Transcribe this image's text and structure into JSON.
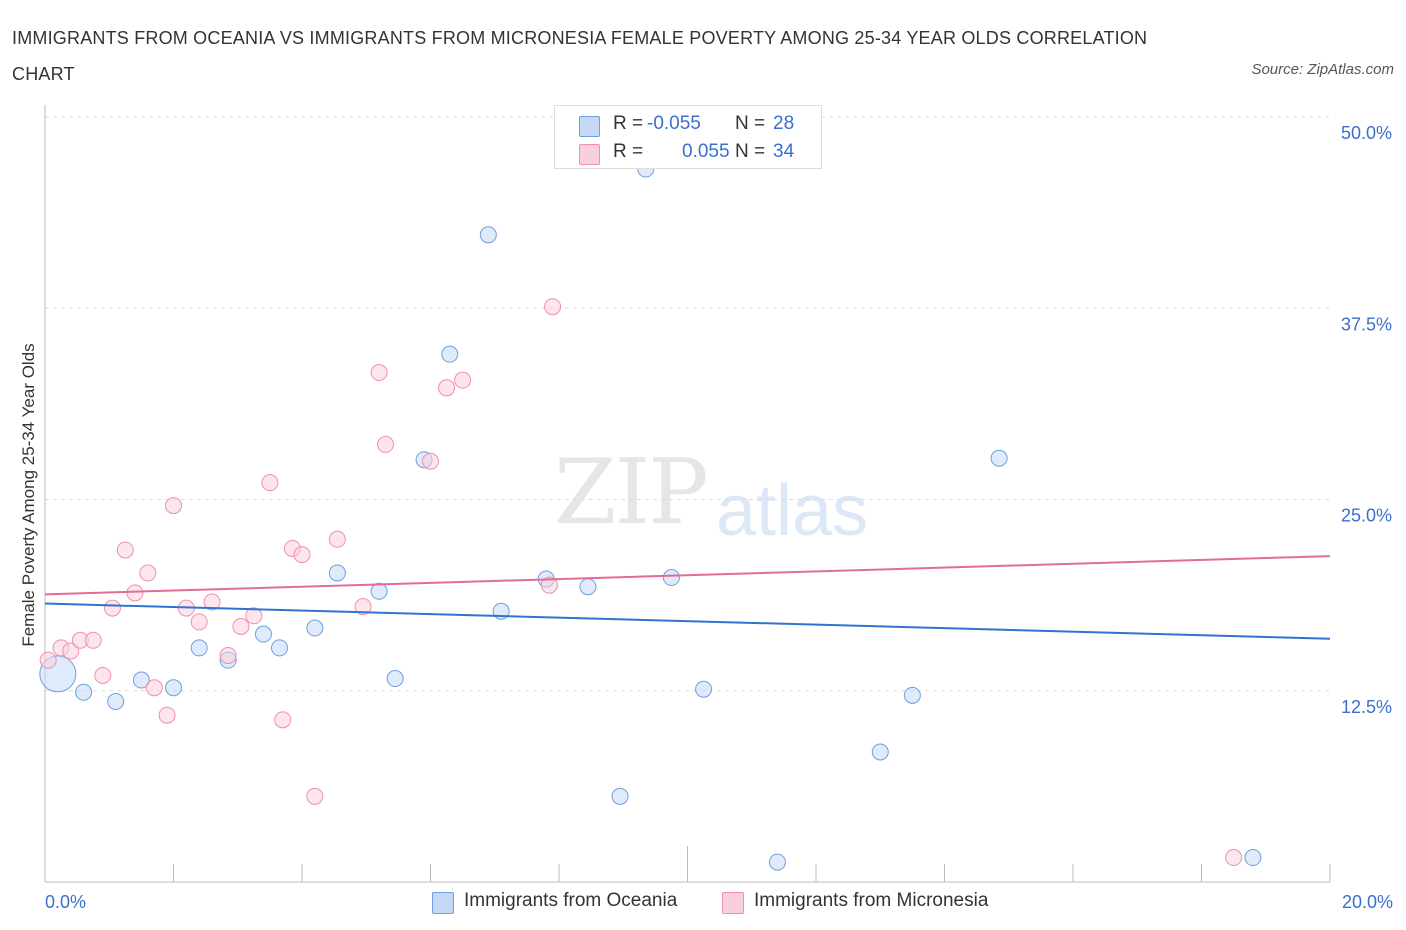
{
  "title": "IMMIGRANTS FROM OCEANIA VS IMMIGRANTS FROM MICRONESIA FEMALE POVERTY AMONG 25-34 YEAR OLDS CORRELATION CHART",
  "source": "Source: ZipAtlas.com",
  "watermark": {
    "zip": "ZIP",
    "atlas": "atlas"
  },
  "legend": {
    "series1": {
      "r_label": "R =",
      "r_value": "-0.055",
      "n_label": "N =",
      "n_value": "28"
    },
    "series2": {
      "r_label": "R =",
      "r_value": "0.055",
      "n_label": "N =",
      "n_value": "34"
    }
  },
  "chart_data": {
    "type": "scatter",
    "title": "IMMIGRANTS FROM OCEANIA VS IMMIGRANTS FROM MICRONESIA FEMALE POVERTY AMONG 25-34 YEAR OLDS CORRELATION CHART",
    "xlabel": "",
    "ylabel": "Female Poverty Among 25-34 Year Olds",
    "xlim": [
      0,
      20
    ],
    "ylim": [
      0,
      50
    ],
    "x_tick_labels": [
      "0.0%",
      "20.0%"
    ],
    "y_ticks": [
      12.5,
      25.0,
      37.5,
      50.0
    ],
    "y_tick_labels": [
      "12.5%",
      "25.0%",
      "37.5%",
      "50.0%"
    ],
    "colors": {
      "oceania": "#6f9fe0",
      "micronesia": "#ef90ad",
      "oceania_line": "#2f74cf",
      "micronesia_line": "#e06d95",
      "tick_text": "#3a6fd0"
    },
    "series": [
      {
        "name": "Immigrants from Oceania",
        "trend": {
          "y_at_0": 18.2,
          "y_at_20": 15.9
        },
        "points": [
          {
            "x": 0.2,
            "y": 13.6,
            "big": true
          },
          {
            "x": 0.6,
            "y": 12.4
          },
          {
            "x": 1.1,
            "y": 11.8
          },
          {
            "x": 1.5,
            "y": 13.2
          },
          {
            "x": 2.0,
            "y": 12.7
          },
          {
            "x": 2.4,
            "y": 15.3
          },
          {
            "x": 2.85,
            "y": 14.5
          },
          {
            "x": 3.4,
            "y": 16.2
          },
          {
            "x": 3.65,
            "y": 15.3
          },
          {
            "x": 4.2,
            "y": 16.6
          },
          {
            "x": 4.55,
            "y": 20.2
          },
          {
            "x": 5.2,
            "y": 19.0
          },
          {
            "x": 5.45,
            "y": 13.3
          },
          {
            "x": 5.9,
            "y": 27.6
          },
          {
            "x": 6.3,
            "y": 34.5
          },
          {
            "x": 6.9,
            "y": 42.3
          },
          {
            "x": 7.1,
            "y": 17.7
          },
          {
            "x": 7.8,
            "y": 19.8
          },
          {
            "x": 8.45,
            "y": 19.3
          },
          {
            "x": 8.95,
            "y": 5.6
          },
          {
            "x": 9.35,
            "y": 46.6
          },
          {
            "x": 9.75,
            "y": 19.9
          },
          {
            "x": 10.25,
            "y": 12.6
          },
          {
            "x": 11.4,
            "y": 1.3
          },
          {
            "x": 13.0,
            "y": 8.5
          },
          {
            "x": 13.5,
            "y": 12.2
          },
          {
            "x": 14.85,
            "y": 27.7
          },
          {
            "x": 18.8,
            "y": 1.6
          }
        ]
      },
      {
        "name": "Immigrants from Micronesia",
        "trend": {
          "y_at_0": 18.8,
          "y_at_20": 21.3
        },
        "points": [
          {
            "x": 0.05,
            "y": 14.5
          },
          {
            "x": 0.25,
            "y": 15.3
          },
          {
            "x": 0.4,
            "y": 15.1
          },
          {
            "x": 0.55,
            "y": 15.8
          },
          {
            "x": 0.75,
            "y": 15.8
          },
          {
            "x": 0.9,
            "y": 13.5
          },
          {
            "x": 1.05,
            "y": 17.9
          },
          {
            "x": 1.25,
            "y": 21.7
          },
          {
            "x": 1.4,
            "y": 18.9
          },
          {
            "x": 1.6,
            "y": 20.2
          },
          {
            "x": 1.7,
            "y": 12.7
          },
          {
            "x": 1.9,
            "y": 10.9
          },
          {
            "x": 2.0,
            "y": 24.6
          },
          {
            "x": 2.2,
            "y": 17.9
          },
          {
            "x": 2.4,
            "y": 17.0
          },
          {
            "x": 2.6,
            "y": 18.3
          },
          {
            "x": 2.85,
            "y": 14.8
          },
          {
            "x": 3.05,
            "y": 16.7
          },
          {
            "x": 3.25,
            "y": 17.4
          },
          {
            "x": 3.5,
            "y": 26.1
          },
          {
            "x": 3.7,
            "y": 10.6
          },
          {
            "x": 3.85,
            "y": 21.8
          },
          {
            "x": 4.0,
            "y": 21.4
          },
          {
            "x": 4.2,
            "y": 5.6
          },
          {
            "x": 4.55,
            "y": 22.4
          },
          {
            "x": 4.95,
            "y": 18.0
          },
          {
            "x": 5.2,
            "y": 33.3
          },
          {
            "x": 5.3,
            "y": 28.6
          },
          {
            "x": 6.0,
            "y": 27.5
          },
          {
            "x": 6.25,
            "y": 32.3
          },
          {
            "x": 6.5,
            "y": 32.8
          },
          {
            "x": 7.85,
            "y": 19.4
          },
          {
            "x": 7.9,
            "y": 37.6
          },
          {
            "x": 18.5,
            "y": 1.6
          }
        ]
      }
    ]
  }
}
